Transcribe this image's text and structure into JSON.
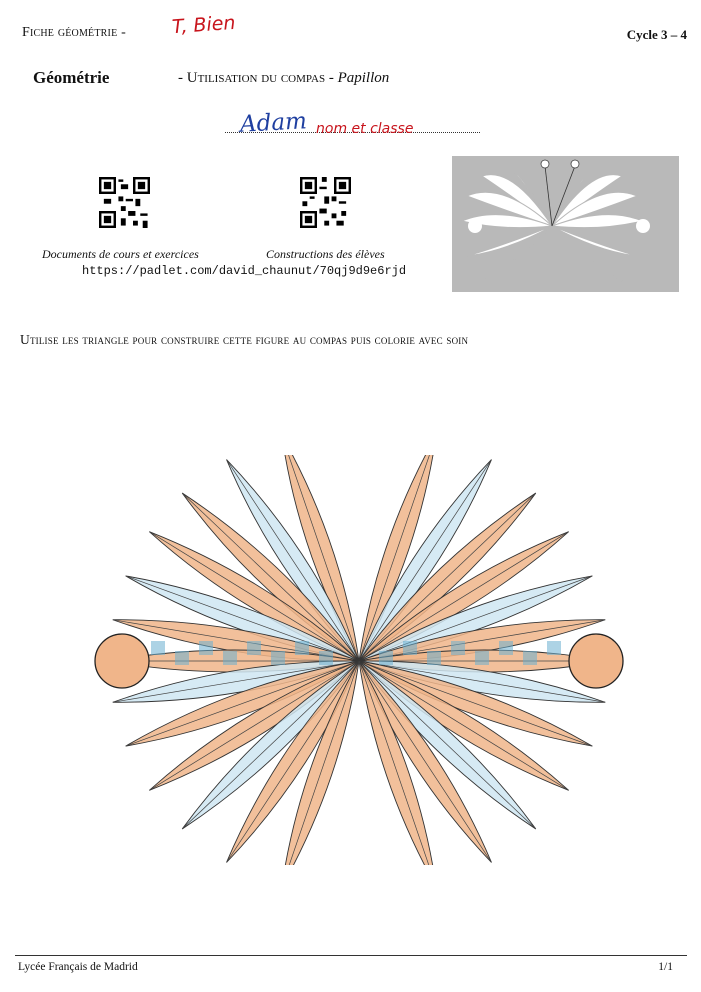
{
  "header": {
    "fiche_label": "Fiche géométrie -",
    "grade_mark": "T, Bien",
    "cycle": "Cycle 3 – 4"
  },
  "title_block": {
    "subject": "Géométrie",
    "activity": "- Utilisation du compas -",
    "figure_name": "Papillon"
  },
  "student": {
    "name_handwritten": "Adam",
    "name_rest": "nom et classe"
  },
  "resources": {
    "documents_caption": "Documents de cours et exercices",
    "constructions_caption": "Constructions des élèves",
    "url": "https://padlet.com/david_chaunut/70qj9d9e6rjd",
    "documents_qr_icon": "qr-code-icon",
    "constructions_qr_icon": "qr-code-icon"
  },
  "instruction": "Utilise les triangle pour construire cette figure au compas puis colorie avec soin",
  "drawing": {
    "colors": {
      "orange": "#f0b58a",
      "blue": "#6aaed0",
      "light_blue": "#cfe6f2"
    }
  },
  "footer": {
    "school": "Lycée Français de Madrid",
    "page": "1/1"
  }
}
